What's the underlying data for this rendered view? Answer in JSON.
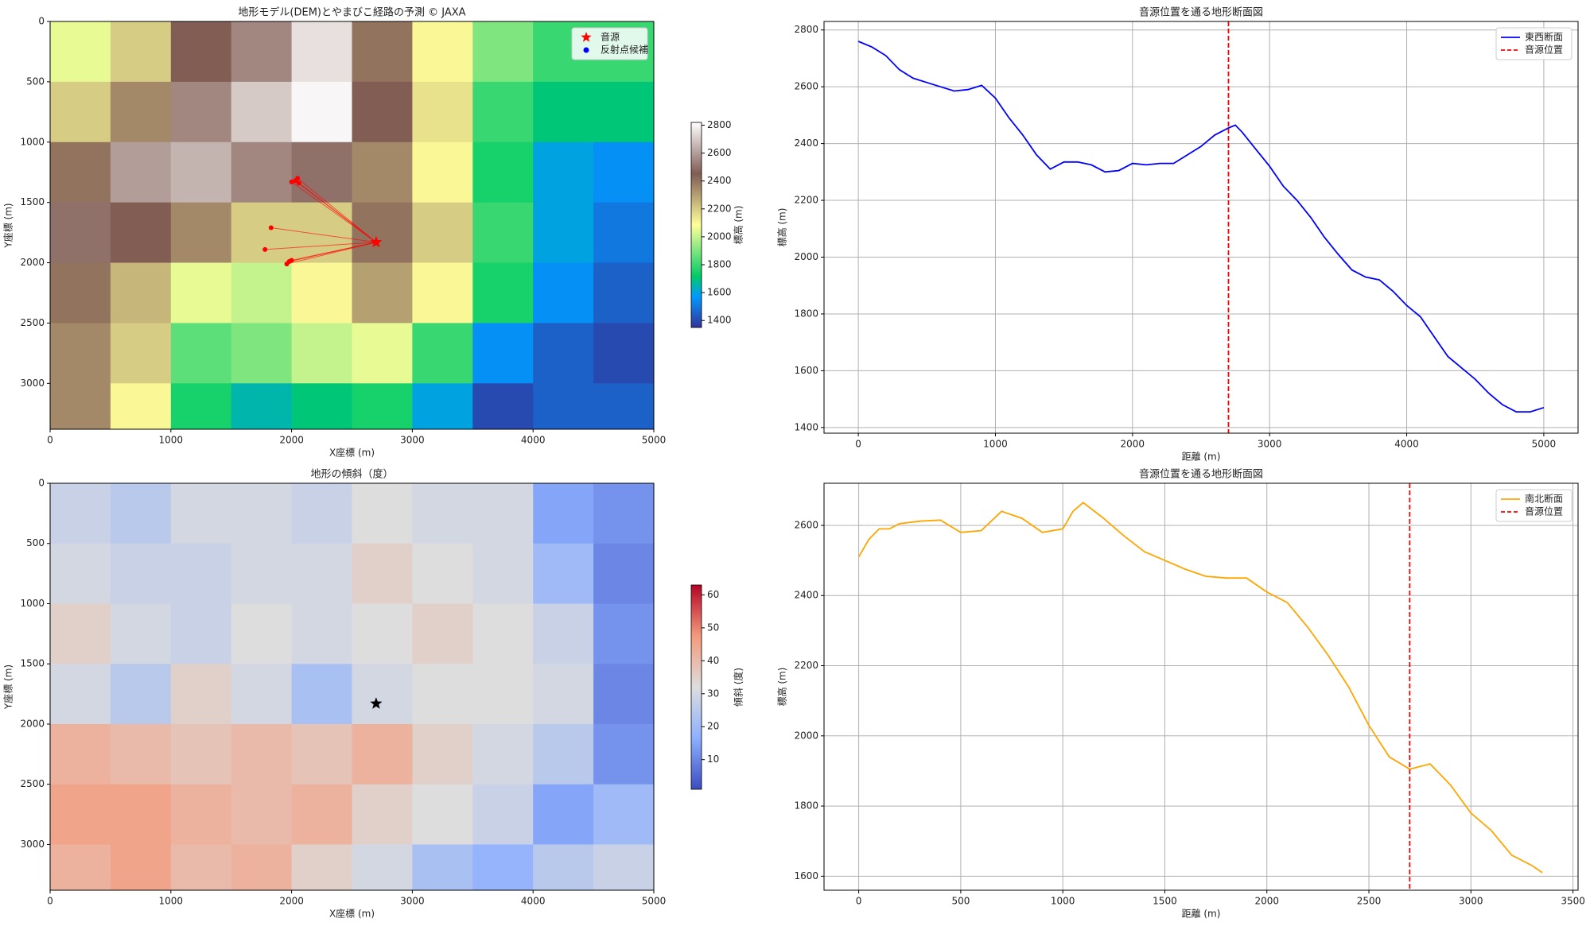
{
  "chart_data": [
    {
      "type": "heatmap",
      "title": "地形モデル(DEM)とやまびこ経路の予測 © JAXA",
      "xlabel": "X座標 (m)",
      "ylabel": "Y座標 (m)",
      "xlim": [
        0,
        5000
      ],
      "ylim": [
        0,
        3380
      ],
      "invert_y": true,
      "xticks": [
        0,
        1000,
        2000,
        3000,
        4000,
        5000
      ],
      "yticks": [
        0,
        500,
        1000,
        1500,
        2000,
        2500,
        3000
      ],
      "x_edges": [
        0,
        500,
        1000,
        1500,
        2000,
        2500,
        3000,
        3500,
        4000,
        4500,
        5000
      ],
      "y_edges": [
        0,
        500,
        1000,
        1500,
        2000,
        2500,
        3000,
        3380
      ],
      "values": [
        [
          2050,
          2200,
          2450,
          2550,
          2750,
          2400,
          2100,
          1900,
          1800,
          1800
        ],
        [
          2200,
          2350,
          2550,
          2700,
          2800,
          2450,
          2150,
          1800,
          1700,
          1700
        ],
        [
          2400,
          2600,
          2650,
          2550,
          2500,
          2350,
          2100,
          1750,
          1600,
          1550
        ],
        [
          2500,
          2450,
          2350,
          2200,
          2200,
          2400,
          2200,
          1800,
          1600,
          1500
        ],
        [
          2400,
          2250,
          2050,
          2000,
          2100,
          2300,
          2100,
          1750,
          1550,
          1450
        ],
        [
          2350,
          2200,
          1850,
          1900,
          2000,
          2050,
          1800,
          1550,
          1450,
          1400
        ],
        [
          2350,
          2100,
          1750,
          1650,
          1700,
          1750,
          1600,
          1400,
          1450,
          1450
        ]
      ],
      "clim": [
        1350,
        2820
      ],
      "colormap": [
        {
          "at": 0,
          "color": "#333399"
        },
        {
          "at": 0.15,
          "color": "#0099ff"
        },
        {
          "at": 0.25,
          "color": "#00cc66"
        },
        {
          "at": 0.5,
          "color": "#ffff99"
        },
        {
          "at": 0.75,
          "color": "#805c54"
        },
        {
          "at": 1,
          "color": "#ffffff"
        }
      ],
      "colorbar_label": "標高 (m)",
      "colorbar_ticks": [
        1400,
        1600,
        1800,
        2000,
        2200,
        2400,
        2600,
        2800
      ],
      "markers": [
        {
          "name": "音源",
          "marker": "star",
          "color": "#ff0000",
          "legend_color": "#ff0000",
          "x": [
            2700
          ],
          "y": [
            1830
          ]
        },
        {
          "name": "反射点候補",
          "marker": "dot",
          "color": "#ff0000",
          "legend_color": "#0000ff",
          "x": [
            2050,
            2030,
            2060,
            2000,
            1830,
            1780,
            1960,
            2000,
            1980
          ],
          "y": [
            1300,
            1320,
            1340,
            1330,
            1710,
            1890,
            2010,
            1980,
            1990
          ]
        }
      ],
      "paths_from": 0,
      "legend": "upper right"
    },
    {
      "type": "line",
      "title": "音源位置を通る地形断面図",
      "xlabel": "距離 (m)",
      "ylabel": "標高 (m)",
      "xlim": [
        -250,
        5250
      ],
      "ylim": [
        1380,
        2830
      ],
      "xticks": [
        0,
        1000,
        2000,
        3000,
        4000,
        5000
      ],
      "yticks": [
        1400,
        1600,
        1800,
        2000,
        2200,
        2400,
        2600,
        2800
      ],
      "grid": true,
      "series": [
        {
          "name": "東西断面",
          "color": "#0000ff",
          "x": [
            0,
            100,
            200,
            300,
            400,
            500,
            600,
            700,
            800,
            900,
            1000,
            1100,
            1200,
            1300,
            1400,
            1500,
            1600,
            1700,
            1800,
            1900,
            2000,
            2100,
            2200,
            2300,
            2400,
            2500,
            2600,
            2700,
            2750,
            2800,
            2900,
            3000,
            3100,
            3200,
            3300,
            3400,
            3500,
            3600,
            3700,
            3800,
            3900,
            4000,
            4100,
            4200,
            4300,
            4400,
            4500,
            4600,
            4700,
            4800,
            4900,
            5000
          ],
          "values": [
            2760,
            2740,
            2710,
            2660,
            2630,
            2615,
            2600,
            2585,
            2590,
            2605,
            2560,
            2490,
            2430,
            2360,
            2310,
            2335,
            2335,
            2325,
            2300,
            2305,
            2330,
            2325,
            2330,
            2330,
            2360,
            2390,
            2430,
            2455,
            2465,
            2440,
            2380,
            2320,
            2250,
            2200,
            2140,
            2070,
            2010,
            1955,
            1930,
            1920,
            1880,
            1830,
            1790,
            1720,
            1650,
            1610,
            1570,
            1520,
            1480,
            1455,
            1455,
            1470
          ]
        }
      ],
      "vlines": [
        {
          "name": "音源位置",
          "color": "#ff0000",
          "x": 2700
        }
      ],
      "legend": "upper right"
    },
    {
      "type": "heatmap",
      "title": "地形の傾斜（度）",
      "xlabel": "X座標 (m)",
      "ylabel": "Y座標 (m)",
      "xlim": [
        0,
        5000
      ],
      "ylim": [
        0,
        3380
      ],
      "invert_y": true,
      "xticks": [
        0,
        1000,
        2000,
        3000,
        4000,
        5000
      ],
      "yticks": [
        0,
        500,
        1000,
        1500,
        2000,
        2500,
        3000
      ],
      "x_edges": [
        0,
        500,
        1000,
        1500,
        2000,
        2500,
        3000,
        3500,
        4000,
        4500,
        5000
      ],
      "y_edges": [
        0,
        500,
        1000,
        1500,
        2000,
        2500,
        3000,
        3380
      ],
      "values": [
        [
          28,
          25,
          30,
          30,
          28,
          32,
          30,
          30,
          15,
          12
        ],
        [
          30,
          28,
          28,
          30,
          30,
          35,
          32,
          30,
          20,
          10
        ],
        [
          35,
          30,
          28,
          32,
          30,
          32,
          35,
          32,
          28,
          12
        ],
        [
          30,
          25,
          35,
          30,
          22,
          30,
          32,
          32,
          30,
          10
        ],
        [
          42,
          40,
          38,
          40,
          38,
          42,
          35,
          30,
          25,
          12
        ],
        [
          45,
          45,
          42,
          40,
          42,
          35,
          32,
          28,
          15,
          20
        ],
        [
          42,
          45,
          40,
          42,
          35,
          30,
          22,
          18,
          25,
          28
        ]
      ],
      "clim": [
        1,
        63
      ],
      "colormap": [
        {
          "at": 0,
          "color": "#3b4cc0"
        },
        {
          "at": 0.25,
          "color": "#8db0fe"
        },
        {
          "at": 0.5,
          "color": "#dddddd"
        },
        {
          "at": 0.75,
          "color": "#f49a7b"
        },
        {
          "at": 1,
          "color": "#b40426"
        }
      ],
      "colorbar_label": "傾斜 (度)",
      "colorbar_ticks": [
        10,
        20,
        30,
        40,
        50,
        60
      ],
      "markers": [
        {
          "marker": "star",
          "color": "#000000",
          "x": [
            2700
          ],
          "y": [
            1830
          ]
        }
      ]
    },
    {
      "type": "line",
      "title": "音源位置を通る地形断面図",
      "xlabel": "距離 (m)",
      "ylabel": "標高 (m)",
      "xlim": [
        -170,
        3525
      ],
      "ylim": [
        1560,
        2720
      ],
      "xticks": [
        0,
        500,
        1000,
        1500,
        2000,
        2500,
        3000,
        3500
      ],
      "yticks": [
        1600,
        1800,
        2000,
        2200,
        2400,
        2600
      ],
      "grid": true,
      "series": [
        {
          "name": "南北断面",
          "color": "#ffa500",
          "x": [
            0,
            50,
            100,
            150,
            200,
            300,
            400,
            500,
            600,
            700,
            800,
            900,
            1000,
            1050,
            1100,
            1200,
            1300,
            1400,
            1500,
            1600,
            1700,
            1800,
            1900,
            2000,
            2100,
            2200,
            2300,
            2400,
            2500,
            2600,
            2700,
            2800,
            2900,
            3000,
            3100,
            3200,
            3300,
            3350
          ],
          "values": [
            2510,
            2560,
            2590,
            2590,
            2605,
            2612,
            2615,
            2580,
            2585,
            2640,
            2620,
            2580,
            2590,
            2640,
            2665,
            2620,
            2570,
            2525,
            2500,
            2475,
            2455,
            2450,
            2450,
            2410,
            2380,
            2310,
            2230,
            2140,
            2030,
            1940,
            1905,
            1920,
            1860,
            1780,
            1730,
            1660,
            1630,
            1610
          ]
        }
      ],
      "vlines": [
        {
          "name": "音源位置",
          "color": "#ff0000",
          "x": 2700
        }
      ],
      "legend": "upper right"
    }
  ]
}
